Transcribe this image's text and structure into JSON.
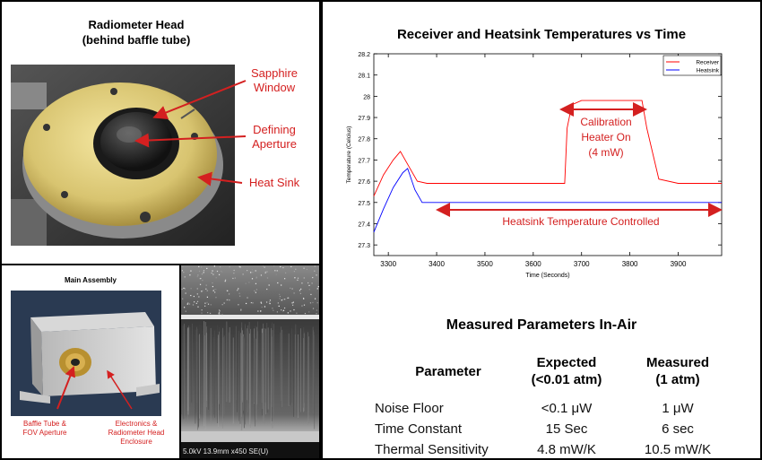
{
  "head_panel": {
    "title_line1": "Radiometer Head",
    "title_line2": "(behind baffle tube)",
    "labels": [
      {
        "line1": "Sapphire",
        "line2": "Window"
      },
      {
        "line1": "Defining",
        "line2": "Aperture"
      },
      {
        "line1": "Heat Sink",
        "line2": ""
      }
    ]
  },
  "assembly_panel": {
    "title": "Main Assembly",
    "label_left_line1": "Baffle Tube &",
    "label_left_line2": "FOV Aperture",
    "label_right_line1": "Electronics &",
    "label_right_line2": "Radiometer Head",
    "label_right_line3": "Enclosure"
  },
  "sem_panel": {
    "caption": "5.0kV 13.9mm x450 SE(U)"
  },
  "chart_data": {
    "type": "line",
    "title": "Receiver and Heatsink Temperatures vs Time",
    "xlabel": "Time (Seconds)",
    "ylabel": "Temperature (Celcius)",
    "xlim": [
      3270,
      3990
    ],
    "ylim": [
      27.25,
      28.2
    ],
    "xticks": [
      3300,
      3400,
      3500,
      3600,
      3700,
      3800,
      3900
    ],
    "yticks": [
      27.3,
      27.4,
      27.5,
      27.6,
      27.7,
      27.8,
      27.9,
      28,
      28.1,
      28.2
    ],
    "legend_position": "top-right",
    "series": [
      {
        "name": "Receiver",
        "color": "#ff0000",
        "x": [
          3270,
          3290,
          3310,
          3325,
          3340,
          3360,
          3380,
          3400,
          3500,
          3600,
          3665,
          3670,
          3680,
          3700,
          3750,
          3800,
          3825,
          3835,
          3860,
          3900,
          3990
        ],
        "y": [
          27.53,
          27.63,
          27.7,
          27.74,
          27.68,
          27.6,
          27.59,
          27.59,
          27.59,
          27.59,
          27.59,
          27.85,
          27.96,
          27.98,
          27.98,
          27.98,
          27.98,
          27.85,
          27.61,
          27.59,
          27.59
        ]
      },
      {
        "name": "Heatsink",
        "color": "#0000ff",
        "x": [
          3270,
          3290,
          3310,
          3330,
          3340,
          3355,
          3370,
          3400,
          3500,
          3600,
          3700,
          3800,
          3900,
          3990
        ],
        "y": [
          27.36,
          27.47,
          27.57,
          27.64,
          27.66,
          27.56,
          27.5,
          27.5,
          27.5,
          27.5,
          27.5,
          27.5,
          27.5,
          27.5
        ]
      }
    ],
    "annotations": [
      {
        "line1": "Calibration",
        "line2": "Heater On",
        "line3": "(4 mW)"
      },
      {
        "text": "Heatsink Temperature Controlled"
      }
    ]
  },
  "table": {
    "title": "Measured Parameters In-Air",
    "headers": [
      {
        "line1": "Parameter",
        "line2": ""
      },
      {
        "line1": "Expected",
        "line2": "(<0.01 atm)"
      },
      {
        "line1": "Measured",
        "line2": "(1 atm)"
      }
    ],
    "rows": [
      {
        "param": "Noise Floor",
        "expected": "<0.1 μW",
        "measured": "1 μW"
      },
      {
        "param": "Time Constant",
        "expected": "15 Sec",
        "measured": "6 sec"
      },
      {
        "param": "Thermal Sensitivity",
        "expected": "4.8 mW/K",
        "measured": "10.5 mW/K"
      }
    ]
  }
}
